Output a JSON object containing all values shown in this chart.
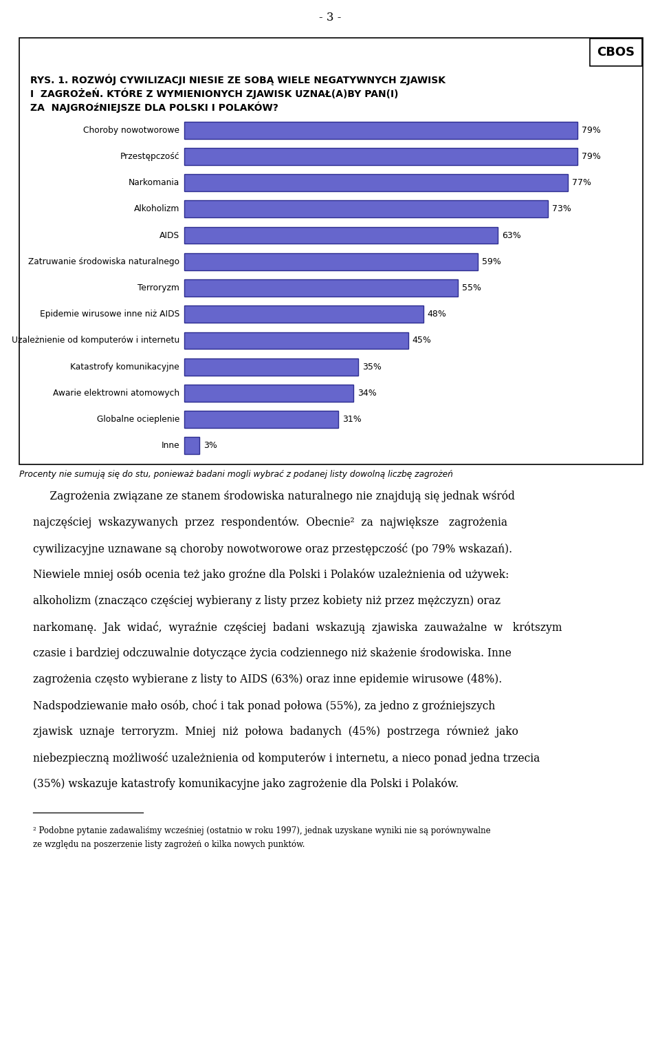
{
  "page_number": "- 3 -",
  "cbos_label": "CBOS",
  "title_line1": "RYS. 1. ROZWÓJ CYWILIZACJI NIESIE ZE SOBĄ WIELE NEGATYWNYCH ZJAWISK",
  "title_line2": "I  ZAGROŻeŃ. KTÓRE Z WYMIENIONYCH ZJAWISK UZNAŁ(A)BY PAN(I)",
  "title_line3": "ZA  NAJGROźNIEJSZE DLA POLSKI I POLAKÓW?",
  "categories": [
    "Choroby nowotworowe",
    "Przestępczość",
    "Narkomania",
    "Alkoholizm",
    "AIDS",
    "Zatruwanie środowiska naturalnego",
    "Terroryzm",
    "Epidemie wirusowe inne niż AIDS",
    "Uzależnienie od komputerów i internetu",
    "Katastrofy komunikacyjne",
    "Awarie elektrowni atomowych",
    "Globalne ocieplenie",
    "Inne"
  ],
  "values": [
    79,
    79,
    77,
    73,
    63,
    59,
    55,
    48,
    45,
    35,
    34,
    31,
    3
  ],
  "bar_color": "#6666cc",
  "bar_edge_color": "#2d2d8f",
  "value_labels": [
    "79%",
    "79%",
    "77%",
    "73%",
    "63%",
    "59%",
    "55%",
    "48%",
    "45%",
    "35%",
    "34%",
    "31%",
    "3%"
  ],
  "footnote": "Procenty nie sumują się do stu, ponieważ badani mogli wybrać z podanej listy dowolną liczbę zagrożeń",
  "body_para1": "     Zagrożenia związane ze stanem środowiska naturalnego nie znajdują się jednak wśród najczęściej wskazywanych przez respondentów. Obecnie² za największe zagrożenia cywilizacyjne uznawane są choroby nowotworowe oraz przestępczość (po 79% wskazań). Niewiele mniej osób ocenia też jako groźne dla Polski i Polaków uzależnienia od używek: alkoholizm (znacząco częściej wybierany z listy przez kobiety niż przez mężczyzn) oraz narkomanę. Jak widać, wyraźnie częściej badani wskazują zjawiska zauważalne w  krótszym czasie i bardziej odczuwalnie dotyczące życia codziennego niż skażenie środowiska. Inne zagrożenia często wybierane z listy to AIDS (63%) oraz inne epidemie wirusowe (48%). Nadspodziewanie mało osób, choć i tak ponad połowa (55%), za jedno z groźniejszych zjawisk uznaje terroryzm. Mniej niż połowa badanych (45%) postrzega również jako niebezpieczną możliwość uzależnienia od komputerów i internetu, a nieco ponad jedna trzecia (35%) wskazuje katastrofy komunikacyjne jako zagrożenie dla Polski i Polaków.",
  "footnote2_line1": "² Podobne pytanie zadawaliśmy wcześniej (ostatnio w roku 1997), jednak uzyskane wyniki nie są porównywalne",
  "footnote2_line2": "ze względu na poszerzenie listy zagrożeń o kilka nowych punktów.",
  "background_color": "#ffffff",
  "text_color": "#000000",
  "chart_bg_color": "#ffffff",
  "border_color": "#000000"
}
